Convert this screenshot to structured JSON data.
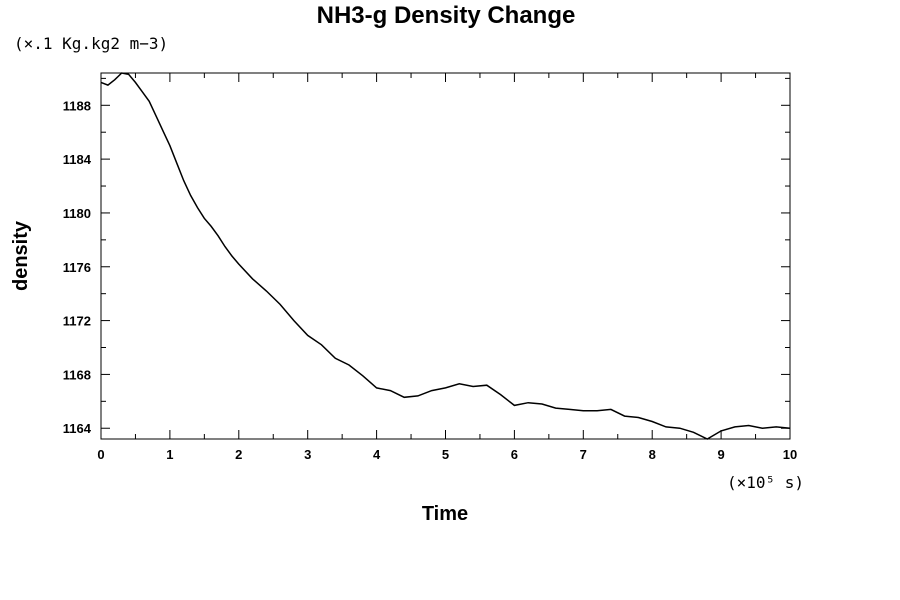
{
  "chart_data": {
    "type": "line",
    "title": "NH3-g Density Change",
    "xlabel": "Time",
    "ylabel": "density",
    "x_unit": "(×10⁵ s)",
    "y_unit": "(×.1 Kg.kg2 m−3)",
    "xlim": [
      0,
      10
    ],
    "ylim": [
      1163.2,
      1190.4
    ],
    "x_ticks": [
      0,
      1,
      2,
      3,
      4,
      5,
      6,
      7,
      8,
      9,
      10
    ],
    "y_ticks": [
      1164,
      1168,
      1172,
      1176,
      1180,
      1184,
      1188
    ],
    "grid": false,
    "series": [
      {
        "x": [
          0,
          0.1,
          0.2,
          0.3,
          0.4,
          0.5,
          0.6,
          0.7,
          0.8,
          0.9,
          1.0,
          1.1,
          1.2,
          1.3,
          1.4,
          1.5,
          1.6,
          1.7,
          1.8,
          1.9,
          2.0,
          2.2,
          2.4,
          2.6,
          2.8,
          3.0,
          3.2,
          3.4,
          3.6,
          3.8,
          4.0,
          4.2,
          4.4,
          4.6,
          4.8,
          5.0,
          5.2,
          5.4,
          5.6,
          5.8,
          6.0,
          6.2,
          6.4,
          6.6,
          6.8,
          7.0,
          7.2,
          7.4,
          7.6,
          7.8,
          8.0,
          8.2,
          8.4,
          8.6,
          8.8,
          9.0,
          9.2,
          9.4,
          9.6,
          9.8,
          10.0
        ],
        "y": [
          1189.7,
          1189.5,
          1189.9,
          1190.4,
          1190.3,
          1189.7,
          1189.0,
          1188.3,
          1187.2,
          1186.1,
          1185.0,
          1183.7,
          1182.4,
          1181.3,
          1180.4,
          1179.6,
          1179.0,
          1178.3,
          1177.5,
          1176.8,
          1176.2,
          1175.1,
          1174.2,
          1173.2,
          1172.0,
          1170.9,
          1170.2,
          1169.2,
          1168.7,
          1167.9,
          1167.0,
          1166.8,
          1166.3,
          1166.4,
          1166.8,
          1167.0,
          1167.3,
          1167.1,
          1167.2,
          1166.5,
          1165.7,
          1165.9,
          1165.8,
          1165.5,
          1165.4,
          1165.3,
          1165.3,
          1165.4,
          1164.9,
          1164.8,
          1164.5,
          1164.1,
          1164.0,
          1163.7,
          1163.2,
          1163.8,
          1164.1,
          1164.2,
          1164.0,
          1164.1,
          1164.0
        ]
      }
    ]
  }
}
